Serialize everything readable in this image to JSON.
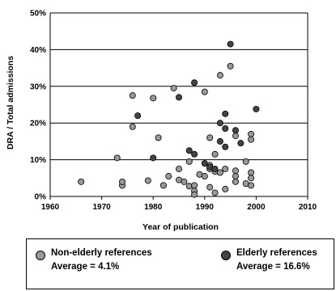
{
  "chart_data": {
    "type": "scatter",
    "title": "",
    "xlabel": "Year of publication",
    "ylabel": "DRA / Total admissions",
    "xlim": [
      1960,
      2010
    ],
    "ylim": [
      0,
      50
    ],
    "xticks": [
      "1960",
      "1970",
      "1980",
      "1990",
      "2000",
      "2010"
    ],
    "yticks": [
      "0%",
      "10%",
      "20%",
      "30%",
      "40%",
      "50%"
    ],
    "grid": "horizontal",
    "legend_position": "bottom",
    "series": [
      {
        "name": "Non-elderly references",
        "caption": "Average = 4.1%",
        "color": "#999999",
        "points": [
          [
            1966,
            4
          ],
          [
            1973,
            10.5
          ],
          [
            1974,
            3
          ],
          [
            1974,
            4
          ],
          [
            1976,
            27.5
          ],
          [
            1976,
            19
          ],
          [
            1979,
            4.3
          ],
          [
            1980,
            26.8
          ],
          [
            1981,
            16
          ],
          [
            1982,
            3
          ],
          [
            1983,
            5.5
          ],
          [
            1984,
            29.5
          ],
          [
            1985,
            7.5
          ],
          [
            1985,
            4.5
          ],
          [
            1986,
            4
          ],
          [
            1987,
            2.8
          ],
          [
            1987,
            9.5
          ],
          [
            1988,
            3
          ],
          [
            1988,
            1.5
          ],
          [
            1988,
            0.5
          ],
          [
            1989,
            6
          ],
          [
            1990,
            28.5
          ],
          [
            1990,
            5.5
          ],
          [
            1991,
            16
          ],
          [
            1991,
            8.5
          ],
          [
            1991,
            7.5
          ],
          [
            1991,
            2.5
          ],
          [
            1992,
            6.8
          ],
          [
            1992,
            1
          ],
          [
            1992,
            11.5
          ],
          [
            1993,
            33
          ],
          [
            1993,
            6.5
          ],
          [
            1994,
            7.5
          ],
          [
            1994,
            2
          ],
          [
            1995,
            35.5
          ],
          [
            1996,
            16.5
          ],
          [
            1996,
            7
          ],
          [
            1996,
            5.5
          ],
          [
            1996,
            4
          ],
          [
            1998,
            9.5
          ],
          [
            1998,
            3.5
          ],
          [
            1999,
            17
          ],
          [
            1999,
            15.5
          ],
          [
            1999,
            6.5
          ],
          [
            1999,
            5
          ],
          [
            1999,
            3
          ]
        ]
      },
      {
        "name": "Elderly references",
        "caption": "Average = 16.6%",
        "color": "#444444",
        "points": [
          [
            1977,
            22
          ],
          [
            1980,
            10.5
          ],
          [
            1985,
            27
          ],
          [
            1987,
            12.5
          ],
          [
            1988,
            31
          ],
          [
            1988,
            11.5
          ],
          [
            1990,
            9
          ],
          [
            1991,
            8
          ],
          [
            1992,
            7.5
          ],
          [
            1993,
            20
          ],
          [
            1993,
            15
          ],
          [
            1994,
            22.5
          ],
          [
            1994,
            18.5
          ],
          [
            1994,
            13.5
          ],
          [
            1995,
            41.5
          ],
          [
            1996,
            18
          ],
          [
            1997,
            14.5
          ],
          [
            2000,
            23.8
          ]
        ]
      }
    ]
  },
  "legend": {
    "entries": [
      {
        "label": "Non-elderly references",
        "caption": "Average = 4.1%",
        "color": "#999999"
      },
      {
        "label": "Elderly references",
        "caption": "Average = 16.6%",
        "color": "#444444"
      }
    ]
  }
}
